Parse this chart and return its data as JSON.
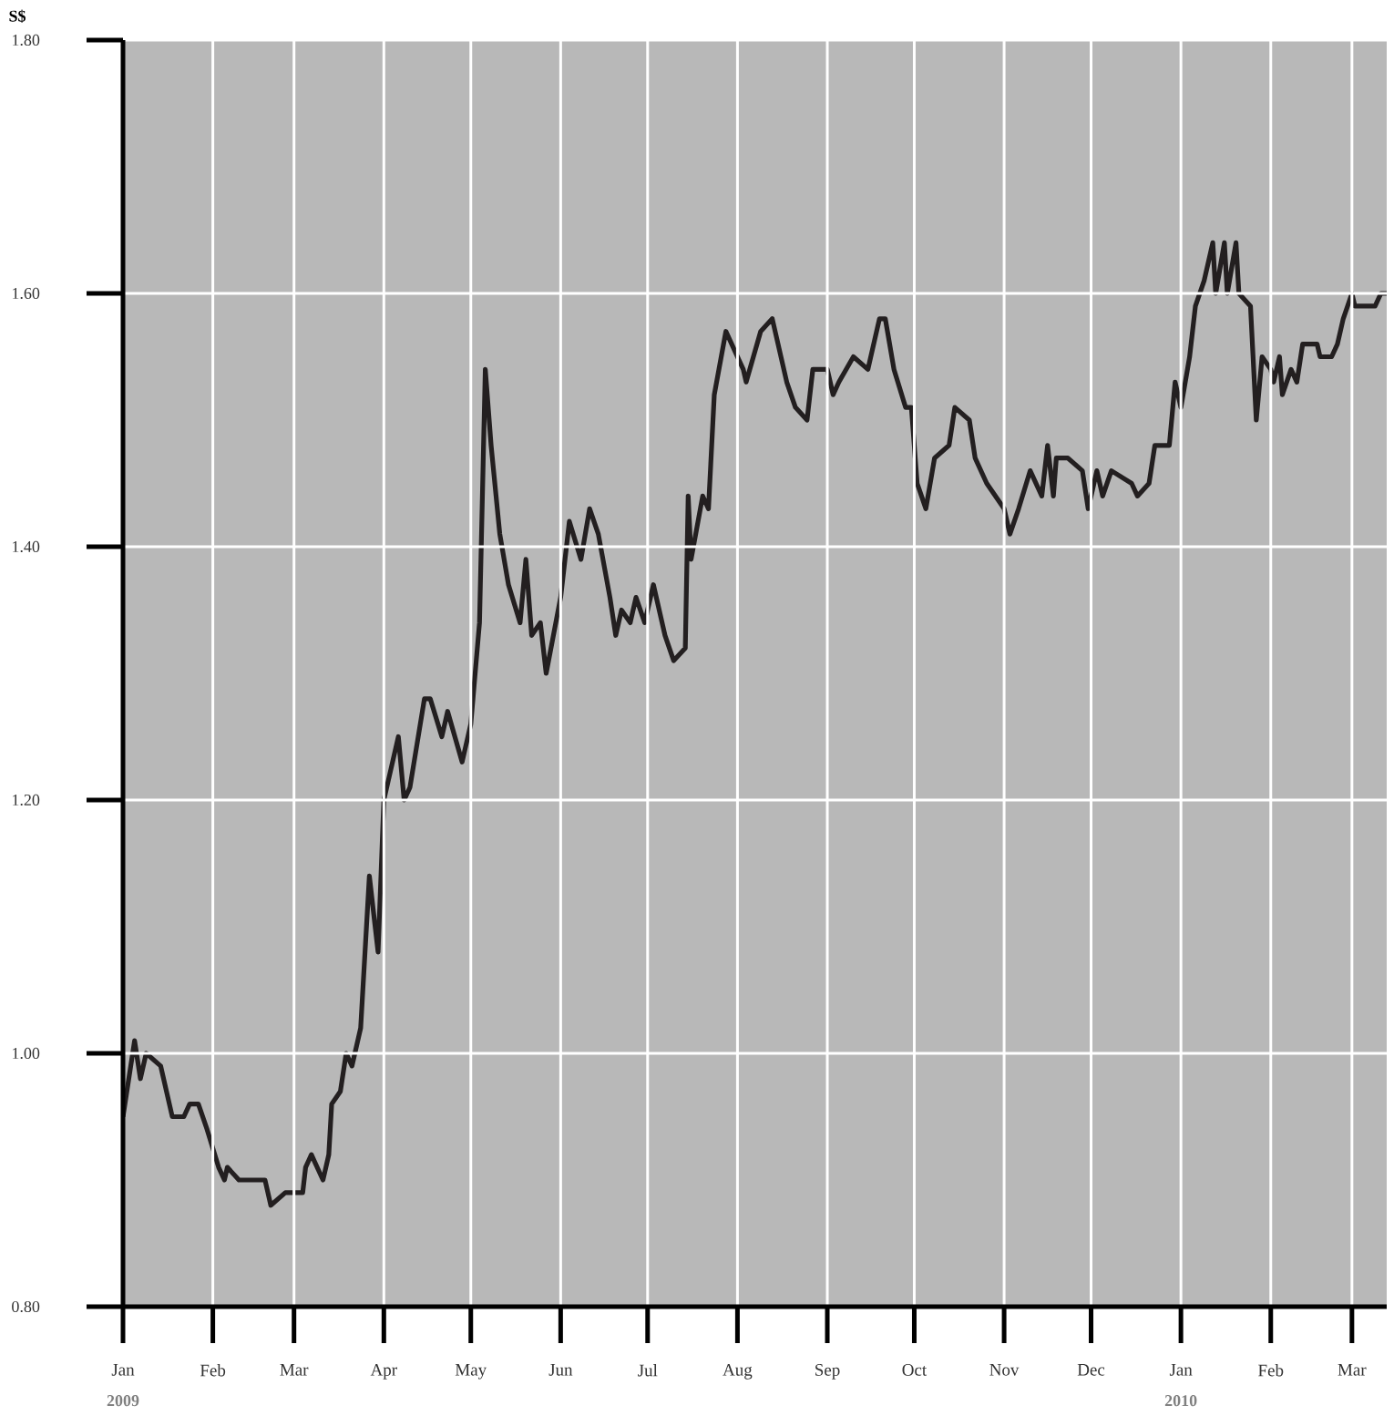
{
  "chart_data": {
    "type": "line",
    "ylabel": "S$",
    "grid": true,
    "marker": "none",
    "line_style": "solid",
    "xlim": [
      "2009-01-01",
      "2010-03-13"
    ],
    "ylim": [
      0.8,
      1.8
    ],
    "yticks": [
      {
        "value": 0.8,
        "label": "0.80"
      },
      {
        "value": 1.0,
        "label": "1.00"
      },
      {
        "value": 1.2,
        "label": "1.20"
      },
      {
        "value": 1.4,
        "label": "1.40"
      },
      {
        "value": 1.6,
        "label": "1.60"
      },
      {
        "value": 1.8,
        "label": "1.80"
      }
    ],
    "xticks": [
      {
        "value": "2009-01-01",
        "label": "Jan"
      },
      {
        "value": "2009-02-01",
        "label": "Feb"
      },
      {
        "value": "2009-03-01",
        "label": "Mar"
      },
      {
        "value": "2009-04-01",
        "label": "Apr"
      },
      {
        "value": "2009-05-01",
        "label": "May"
      },
      {
        "value": "2009-06-01",
        "label": "Jun"
      },
      {
        "value": "2009-07-01",
        "label": "Jul"
      },
      {
        "value": "2009-08-01",
        "label": "Aug"
      },
      {
        "value": "2009-09-01",
        "label": "Sep"
      },
      {
        "value": "2009-10-01",
        "label": "Oct"
      },
      {
        "value": "2009-11-01",
        "label": "Nov"
      },
      {
        "value": "2009-12-01",
        "label": "Dec"
      },
      {
        "value": "2010-01-01",
        "label": "Jan"
      },
      {
        "value": "2010-02-01",
        "label": "Feb"
      },
      {
        "value": "2010-03-01",
        "label": "Mar"
      }
    ],
    "annotations": [
      "2009",
      "2010"
    ],
    "series": [
      {
        "color": "#231f20",
        "x": [
          "2009-01-01",
          "2009-01-05",
          "2009-01-07",
          "2009-01-09",
          "2009-01-14",
          "2009-01-18",
          "2009-01-22",
          "2009-01-24",
          "2009-01-27",
          "2009-01-30",
          "2009-02-03",
          "2009-02-05",
          "2009-02-06",
          "2009-02-10",
          "2009-02-13",
          "2009-02-19",
          "2009-02-21",
          "2009-02-26",
          "2009-03-04",
          "2009-03-05",
          "2009-03-07",
          "2009-03-11",
          "2009-03-13",
          "2009-03-14",
          "2009-03-17",
          "2009-03-19",
          "2009-03-21",
          "2009-03-24",
          "2009-03-27",
          "2009-03-30",
          "2009-04-01",
          "2009-04-06",
          "2009-04-08",
          "2009-04-10",
          "2009-04-15",
          "2009-04-17",
          "2009-04-21",
          "2009-04-23",
          "2009-04-28",
          "2009-05-01",
          "2009-05-04",
          "2009-05-06",
          "2009-05-08",
          "2009-05-11",
          "2009-05-14",
          "2009-05-18",
          "2009-05-20",
          "2009-05-22",
          "2009-05-25",
          "2009-05-27",
          "2009-06-01",
          "2009-06-04",
          "2009-06-08",
          "2009-06-11",
          "2009-06-14",
          "2009-06-18",
          "2009-06-20",
          "2009-06-22",
          "2009-06-25",
          "2009-06-27",
          "2009-06-30",
          "2009-07-03",
          "2009-07-07",
          "2009-07-10",
          "2009-07-14",
          "2009-07-15",
          "2009-07-16",
          "2009-07-20",
          "2009-07-22",
          "2009-07-24",
          "2009-07-28",
          "2009-08-03",
          "2009-08-04",
          "2009-08-09",
          "2009-08-13",
          "2009-08-18",
          "2009-08-21",
          "2009-08-25",
          "2009-08-27",
          "2009-09-01",
          "2009-09-03",
          "2009-09-05",
          "2009-09-10",
          "2009-09-15",
          "2009-09-19",
          "2009-09-21",
          "2009-09-24",
          "2009-09-28",
          "2009-09-30",
          "2009-10-02",
          "2009-10-05",
          "2009-10-08",
          "2009-10-13",
          "2009-10-15",
          "2009-10-20",
          "2009-10-22",
          "2009-10-26",
          "2009-11-01",
          "2009-11-03",
          "2009-11-06",
          "2009-11-10",
          "2009-11-14",
          "2009-11-16",
          "2009-11-18",
          "2009-11-19",
          "2009-11-23",
          "2009-11-28",
          "2009-11-30",
          "2009-12-03",
          "2009-12-05",
          "2009-12-08",
          "2009-12-15",
          "2009-12-17",
          "2009-12-21",
          "2009-12-23",
          "2009-12-28",
          "2009-12-30",
          "2010-01-01",
          "2010-01-04",
          "2010-01-06",
          "2010-01-09",
          "2010-01-12",
          "2010-01-13",
          "2010-01-16",
          "2010-01-17",
          "2010-01-20",
          "2010-01-21",
          "2010-01-25",
          "2010-01-27",
          "2010-01-29",
          "2010-02-01",
          "2010-02-02",
          "2010-02-04",
          "2010-02-05",
          "2010-02-08",
          "2010-02-10",
          "2010-02-12",
          "2010-02-17",
          "2010-02-18",
          "2010-02-22",
          "2010-02-24",
          "2010-02-26",
          "2010-03-01",
          "2010-03-02",
          "2010-03-09",
          "2010-03-11",
          "2010-03-13"
        ],
        "values": [
          0.95,
          1.01,
          0.98,
          1.0,
          0.99,
          0.95,
          0.95,
          0.96,
          0.96,
          0.94,
          0.91,
          0.9,
          0.91,
          0.9,
          0.9,
          0.9,
          0.88,
          0.89,
          0.89,
          0.91,
          0.92,
          0.9,
          0.92,
          0.96,
          0.97,
          1.0,
          0.99,
          1.02,
          1.14,
          1.08,
          1.2,
          1.25,
          1.2,
          1.21,
          1.28,
          1.28,
          1.25,
          1.27,
          1.23,
          1.26,
          1.34,
          1.54,
          1.48,
          1.41,
          1.37,
          1.34,
          1.39,
          1.33,
          1.34,
          1.3,
          1.36,
          1.42,
          1.39,
          1.43,
          1.41,
          1.36,
          1.33,
          1.35,
          1.34,
          1.36,
          1.34,
          1.37,
          1.33,
          1.31,
          1.32,
          1.44,
          1.39,
          1.44,
          1.43,
          1.52,
          1.57,
          1.54,
          1.53,
          1.57,
          1.58,
          1.53,
          1.51,
          1.5,
          1.54,
          1.54,
          1.52,
          1.53,
          1.55,
          1.54,
          1.58,
          1.58,
          1.54,
          1.51,
          1.51,
          1.45,
          1.43,
          1.47,
          1.48,
          1.51,
          1.5,
          1.47,
          1.45,
          1.43,
          1.41,
          1.43,
          1.46,
          1.44,
          1.48,
          1.44,
          1.47,
          1.47,
          1.46,
          1.43,
          1.46,
          1.44,
          1.46,
          1.45,
          1.44,
          1.45,
          1.48,
          1.48,
          1.53,
          1.51,
          1.55,
          1.59,
          1.61,
          1.64,
          1.6,
          1.64,
          1.6,
          1.64,
          1.6,
          1.59,
          1.5,
          1.55,
          1.54,
          1.53,
          1.55,
          1.52,
          1.54,
          1.53,
          1.56,
          1.56,
          1.55,
          1.55,
          1.56,
          1.58,
          1.6,
          1.59,
          1.59,
          1.6,
          1.6
        ]
      }
    ]
  }
}
